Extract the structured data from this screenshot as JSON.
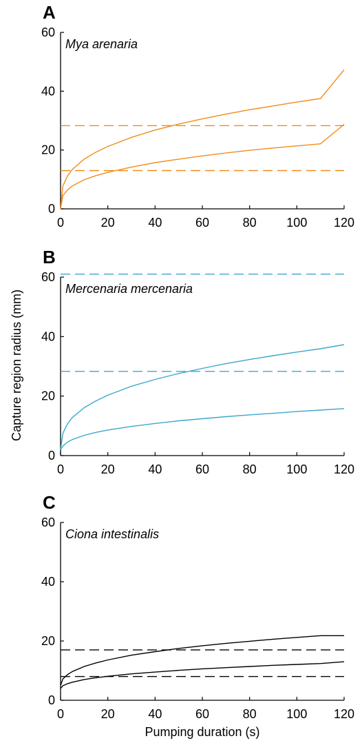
{
  "figure": {
    "ylabel": "Capture region radius (mm)",
    "xlabel": "Pumping duration (s)"
  },
  "chart_data": [
    {
      "type": "line",
      "panel": "A",
      "title": "Mya arenaria",
      "color": "#f08c1a",
      "xlim": [
        0,
        120
      ],
      "ylim": [
        0,
        60
      ],
      "xticks": [
        0,
        20,
        40,
        60,
        80,
        100,
        120
      ],
      "yticks": [
        0,
        20,
        40,
        60
      ],
      "grid": false,
      "series": [
        {
          "style": "solid",
          "x": [
            0,
            1,
            3,
            5,
            10,
            15,
            20,
            30,
            40,
            50,
            60,
            70,
            80,
            90,
            100,
            110,
            120
          ],
          "y": [
            0,
            7.8,
            11.3,
            13.4,
            16.9,
            19.3,
            21.2,
            24.3,
            26.8,
            28.8,
            30.6,
            32.2,
            33.7,
            35.0,
            36.3,
            37.5,
            47.3
          ]
        },
        {
          "style": "solid",
          "x": [
            0,
            1,
            3,
            5,
            10,
            15,
            20,
            30,
            40,
            50,
            60,
            70,
            80,
            90,
            100,
            110,
            120
          ],
          "y": [
            0,
            4.5,
            6.5,
            7.8,
            9.9,
            11.3,
            12.4,
            14.2,
            15.7,
            16.9,
            18.0,
            19.0,
            19.9,
            20.7,
            21.4,
            22.1,
            28.7
          ]
        },
        {
          "style": "dashed",
          "x": [
            0,
            120
          ],
          "y": [
            28.3,
            28.3
          ]
        },
        {
          "style": "dashed",
          "x": [
            0,
            120
          ],
          "y": [
            13.0,
            13.0
          ]
        }
      ]
    },
    {
      "type": "line",
      "panel": "B",
      "title": "Mercenaria mercenaria",
      "color": "#3aa8cc",
      "xlim": [
        0,
        120
      ],
      "ylim": [
        0,
        60
      ],
      "xticks": [
        0,
        20,
        40,
        60,
        80,
        100,
        120
      ],
      "yticks": [
        0,
        20,
        40,
        60
      ],
      "grid": false,
      "series": [
        {
          "style": "solid",
          "x": [
            0,
            1,
            3,
            5,
            10,
            15,
            20,
            30,
            40,
            50,
            60,
            70,
            80,
            90,
            100,
            110,
            120
          ],
          "y": [
            2.0,
            7.5,
            10.8,
            12.8,
            16.1,
            18.4,
            20.3,
            23.3,
            25.6,
            27.6,
            29.3,
            30.9,
            32.3,
            33.6,
            34.8,
            35.9,
            37.3
          ]
        },
        {
          "style": "solid",
          "x": [
            0,
            1,
            3,
            5,
            10,
            15,
            20,
            30,
            40,
            50,
            60,
            70,
            80,
            90,
            100,
            110,
            120
          ],
          "y": [
            2.0,
            3.2,
            4.6,
            5.4,
            6.8,
            7.8,
            8.6,
            9.8,
            10.8,
            11.7,
            12.4,
            13.1,
            13.7,
            14.2,
            14.8,
            15.3,
            15.8
          ]
        },
        {
          "style": "dashed",
          "x": [
            0,
            120
          ],
          "y": [
            61.0,
            61.0
          ]
        },
        {
          "style": "dashed",
          "x": [
            0,
            120
          ],
          "y": [
            28.3,
            28.3
          ]
        }
      ]
    },
    {
      "type": "line",
      "panel": "C",
      "title": "Ciona intestinalis",
      "color": "#000000",
      "xlim": [
        0,
        120
      ],
      "ylim": [
        0,
        60
      ],
      "xticks": [
        0,
        20,
        40,
        60,
        80,
        100,
        120
      ],
      "yticks": [
        0,
        20,
        40,
        60
      ],
      "grid": false,
      "series": [
        {
          "style": "solid",
          "x": [
            0,
            1,
            3,
            5,
            10,
            15,
            20,
            30,
            40,
            50,
            60,
            70,
            80,
            90,
            100,
            110,
            120
          ],
          "y": [
            5.0,
            7.2,
            8.7,
            9.7,
            11.4,
            12.6,
            13.6,
            15.2,
            16.4,
            17.5,
            18.4,
            19.2,
            19.9,
            20.6,
            21.2,
            21.8,
            21.8
          ]
        },
        {
          "style": "solid",
          "x": [
            0,
            1,
            3,
            5,
            10,
            15,
            20,
            30,
            40,
            50,
            60,
            70,
            80,
            90,
            100,
            110,
            120
          ],
          "y": [
            4.0,
            4.9,
            5.6,
            6.1,
            7.0,
            7.6,
            8.1,
            8.9,
            9.5,
            10.1,
            10.6,
            11.0,
            11.4,
            11.8,
            12.1,
            12.4,
            13.0
          ]
        },
        {
          "style": "dashed",
          "x": [
            0,
            120
          ],
          "y": [
            17.0,
            17.0
          ]
        },
        {
          "style": "dashed",
          "x": [
            0,
            120
          ],
          "y": [
            8.0,
            8.0
          ]
        }
      ]
    }
  ]
}
